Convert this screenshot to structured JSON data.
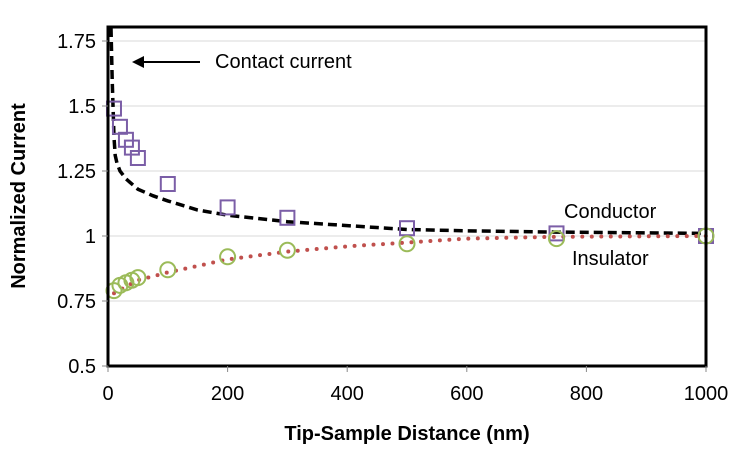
{
  "chart_data": {
    "type": "scatter",
    "title": "",
    "xlabel": "Tip-Sample Distance (nm)",
    "ylabel": "Normalized Current",
    "xlim": [
      0,
      1000
    ],
    "ylim": [
      0.5,
      1.8
    ],
    "xticks": [
      "0",
      "200",
      "400",
      "600",
      "800",
      "1000"
    ],
    "xtick_values": [
      0,
      200,
      400,
      600,
      800,
      1000
    ],
    "yticks": [
      "0.5",
      "0.75",
      "1",
      "1.25",
      "1.5",
      "1.75"
    ],
    "ytick_values": [
      0.5,
      0.75,
      1,
      1.25,
      1.5,
      1.75
    ],
    "grid": "horizontal",
    "series": [
      {
        "name": "Conductor",
        "kind": "markers",
        "marker": "square",
        "color": "#7b5ea7",
        "x": [
          10,
          20,
          30,
          40,
          50,
          100,
          200,
          300,
          500,
          750,
          1000
        ],
        "y": [
          1.49,
          1.42,
          1.37,
          1.34,
          1.3,
          1.2,
          1.11,
          1.07,
          1.03,
          1.01,
          1.0
        ]
      },
      {
        "name": "Insulator",
        "kind": "markers",
        "marker": "circle",
        "color": "#9bbb59",
        "x": [
          10,
          20,
          30,
          40,
          50,
          100,
          200,
          300,
          500,
          750,
          1000
        ],
        "y": [
          0.79,
          0.81,
          0.82,
          0.83,
          0.84,
          0.87,
          0.92,
          0.945,
          0.97,
          0.99,
          1.0
        ]
      },
      {
        "kind": "line",
        "style": "dashed",
        "color": "#000000",
        "x": [
          5,
          7,
          10,
          12,
          15,
          20,
          30,
          50,
          75,
          100,
          150,
          200,
          300,
          400,
          500,
          600,
          750,
          1000
        ],
        "y": [
          1.8,
          1.6,
          1.38,
          1.31,
          1.28,
          1.25,
          1.22,
          1.18,
          1.155,
          1.135,
          1.1,
          1.08,
          1.055,
          1.04,
          1.025,
          1.02,
          1.015,
          1.01
        ]
      },
      {
        "kind": "line",
        "style": "dotted",
        "color": "#c0504d",
        "x": [
          10,
          50,
          100,
          200,
          300,
          400,
          500,
          600,
          750,
          1000
        ],
        "y": [
          0.78,
          0.83,
          0.86,
          0.91,
          0.94,
          0.96,
          0.975,
          0.99,
          0.997,
          1.0
        ]
      }
    ],
    "annotations": {
      "contact": "Contact current",
      "conductor": "Conductor",
      "insulator": "Insulator"
    }
  }
}
